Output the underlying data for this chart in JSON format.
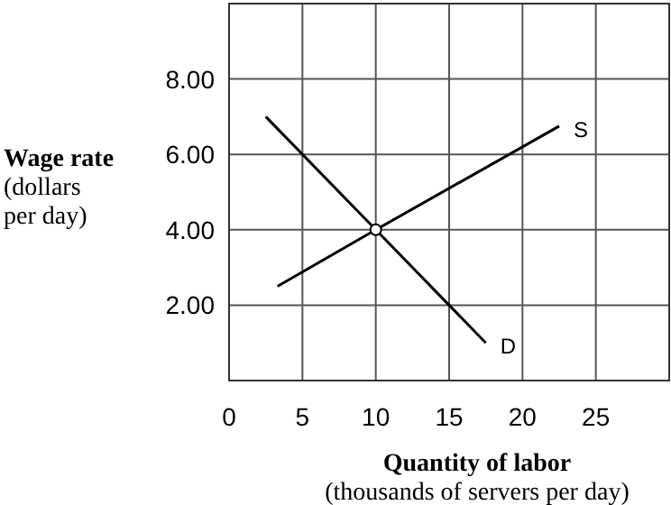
{
  "chart_data": {
    "type": "line",
    "xlabel": "Quantity of labor\n(thousands of servers per day)",
    "ylabel": "Wage rate\n(dollars\nper day)",
    "xlim": [
      0,
      30
    ],
    "ylim": [
      0,
      10
    ],
    "xticks": [
      0,
      5,
      10,
      15,
      20,
      25
    ],
    "yticks": [
      {
        "value": 2,
        "label": "2.00"
      },
      {
        "value": 4,
        "label": "4.00"
      },
      {
        "value": 6,
        "label": "6.00"
      },
      {
        "value": 8,
        "label": "8.00"
      }
    ],
    "grid": true,
    "line_style": "solid",
    "series": [
      {
        "name": "S",
        "color": "#000000",
        "x": [
          3.3,
          10,
          22.5
        ],
        "values": [
          2.5,
          4,
          6.75
        ]
      },
      {
        "name": "D",
        "color": "#000000",
        "x": [
          2.5,
          10,
          17.5
        ],
        "values": [
          7,
          4,
          1
        ]
      },
      {
        "type": "scatter",
        "color": "#000000",
        "x": [
          10
        ],
        "values": [
          4
        ],
        "marker": "circle"
      }
    ]
  }
}
